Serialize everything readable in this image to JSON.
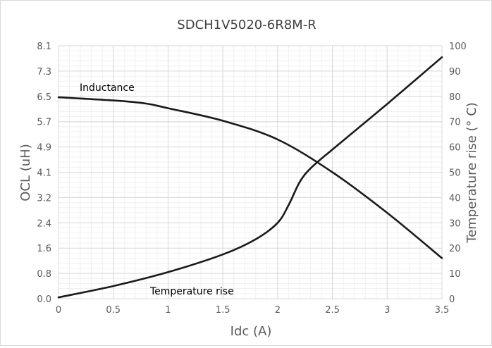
{
  "chart_data": {
    "type": "line",
    "title": "SDCH1V5020-6R8M-R",
    "xlabel": "Idc (A)",
    "ylabel_left": "OCL (uH)",
    "ylabel_right": "Temperature rise (° C)",
    "xlim": [
      0,
      3.5
    ],
    "ylim_left": [
      0,
      8.1
    ],
    "ylim_right": [
      0,
      100
    ],
    "grid": true,
    "x_ticks": [
      "0",
      "0.5",
      "1",
      "1.5",
      "2",
      "2.5",
      "3",
      "3.5"
    ],
    "y_left_ticks": [
      "0.0",
      "0.8",
      "1.6",
      "2.4",
      "3.2",
      "4.1",
      "4.9",
      "5.7",
      "6.5",
      "7.3",
      "8.1"
    ],
    "y_right_ticks": [
      "0",
      "10",
      "20",
      "30",
      "40",
      "50",
      "60",
      "70",
      "80",
      "90",
      "100"
    ],
    "annotations": [
      "Inductance",
      "Temperature rise"
    ],
    "series": [
      {
        "name": "Inductance",
        "axis": "left",
        "x": [
          0,
          0.5,
          0.8,
          1.0,
          1.5,
          2.0,
          2.5,
          3.0,
          3.5
        ],
        "values": [
          6.45,
          6.35,
          6.25,
          6.1,
          5.7,
          5.1,
          4.05,
          2.75,
          1.3
        ]
      },
      {
        "name": "Temperature rise",
        "axis": "right",
        "x": [
          0,
          0.5,
          1.0,
          1.5,
          1.8,
          2.0,
          2.1,
          2.2,
          2.3,
          2.5,
          3.0,
          3.5
        ],
        "values": [
          0.5,
          5,
          10.5,
          17.5,
          23.5,
          30,
          37,
          46,
          51.5,
          59,
          77,
          95.5
        ]
      }
    ]
  }
}
